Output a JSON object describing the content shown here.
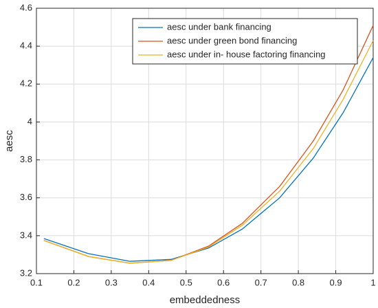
{
  "chart_data": {
    "type": "line",
    "x": [
      0.12,
      0.24,
      0.35,
      0.46,
      0.56,
      0.65,
      0.75,
      0.84,
      0.92,
      1.0
    ],
    "series": [
      {
        "name": "aesc under bank financing",
        "color": "#0072bd",
        "values": [
          3.385,
          3.305,
          3.265,
          3.275,
          3.335,
          3.435,
          3.6,
          3.81,
          4.05,
          4.34
        ]
      },
      {
        "name": "aesc under green bond financing",
        "color": "#d95319",
        "values": [
          3.375,
          3.29,
          3.255,
          3.27,
          3.345,
          3.465,
          3.66,
          3.9,
          4.17,
          4.51
        ]
      },
      {
        "name": "aesc under in- house factoring financing",
        "color": "#edb120",
        "values": [
          3.375,
          3.29,
          3.255,
          3.27,
          3.34,
          3.455,
          3.635,
          3.86,
          4.12,
          4.43
        ]
      }
    ],
    "xlabel": "embeddedness",
    "ylabel": "aesc",
    "xlim": [
      0.1,
      1
    ],
    "xticks": [
      0.1,
      0.2,
      0.3,
      0.4,
      0.5,
      0.6,
      0.7,
      0.8,
      0.9,
      1
    ],
    "ylim": [
      3.2,
      4.6
    ],
    "yticks": [
      3.2,
      3.4,
      3.6,
      3.8,
      4,
      4.2,
      4.4,
      4.6
    ],
    "grid": true,
    "legend": "northeast"
  }
}
